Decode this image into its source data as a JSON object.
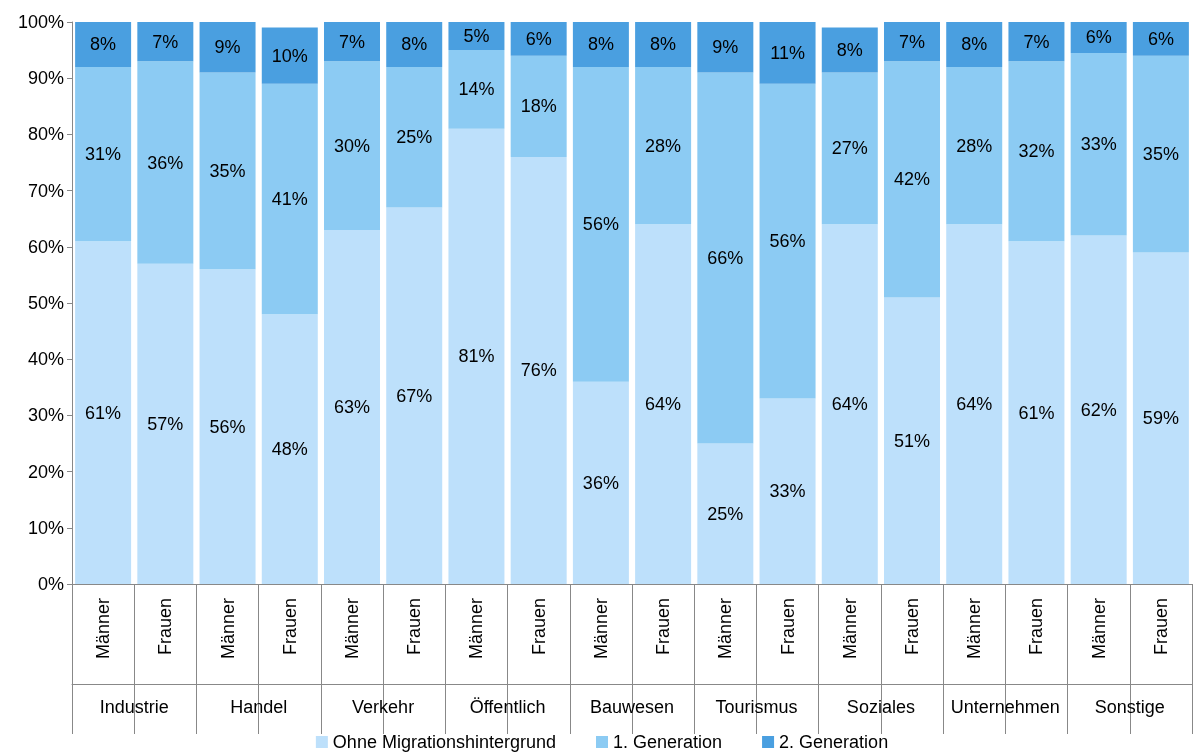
{
  "chart_data": {
    "type": "bar",
    "stacked": true,
    "categories": [
      "Männer",
      "Frauen",
      "Männer",
      "Frauen",
      "Männer",
      "Frauen",
      "Männer",
      "Frauen",
      "Männer",
      "Frauen",
      "Männer",
      "Frauen",
      "Männer",
      "Frauen",
      "Männer",
      "Frauen",
      "Männer",
      "Frauen"
    ],
    "annotations": [
      "Industrie",
      "Handel",
      "Verkehr",
      "Öffentlich",
      "Bauwesen",
      "Tourismus",
      "Soziales",
      "Unternehmen",
      "Sonstige"
    ],
    "series": [
      {
        "name": "Ohne Migrationshintergrund",
        "color": "#bde0fb",
        "values": [
          61,
          57,
          56,
          48,
          63,
          67,
          81,
          76,
          36,
          64,
          25,
          33,
          64,
          51,
          64,
          61,
          62,
          59
        ],
        "value_labels": [
          "61%",
          "57%",
          "56%",
          "48%",
          "63%",
          "67%",
          "81%",
          "76%",
          "36%",
          "64%",
          "25%",
          "33%",
          "64%",
          "51%",
          "64%",
          "61%",
          "62%",
          "59%"
        ]
      },
      {
        "name": "1. Generation",
        "color": "#8ccbf3",
        "values": [
          31,
          36,
          35,
          41,
          30,
          25,
          14,
          18,
          56,
          28,
          66,
          56,
          27,
          42,
          28,
          32,
          32.5,
          35
        ],
        "value_labels": [
          "31%",
          "36%",
          "35%",
          "41%",
          "30%",
          "25%",
          "14%",
          "18%",
          "56%",
          "28%",
          "66%",
          "56%",
          "27%",
          "42%",
          "28%",
          "32%",
          "33%",
          "35%"
        ]
      },
      {
        "name": "2. Generation",
        "color": "#4a9fe0",
        "values": [
          8,
          7,
          9,
          10,
          7,
          8,
          5,
          6,
          8,
          8,
          9,
          11,
          8,
          7,
          8,
          7,
          5.5,
          6
        ],
        "value_labels": [
          "8%",
          "7%",
          "9%",
          "10%",
          "7%",
          "8%",
          "5%",
          "6%",
          "8%",
          "8%",
          "9%",
          "11%",
          "8%",
          "7%",
          "8%",
          "7%",
          "6%",
          "6%"
        ]
      }
    ],
    "ylim": [
      0,
      100
    ],
    "yticks": [
      {
        "value": 0,
        "label": "0%"
      },
      {
        "value": 10,
        "label": "10%"
      },
      {
        "value": 20,
        "label": "20%"
      },
      {
        "value": 30,
        "label": "30%"
      },
      {
        "value": 40,
        "label": "40%"
      },
      {
        "value": 50,
        "label": "50%"
      },
      {
        "value": 60,
        "label": "60%"
      },
      {
        "value": 70,
        "label": "70%"
      },
      {
        "value": 80,
        "label": "80%"
      },
      {
        "value": 90,
        "label": "90%"
      },
      {
        "value": 100,
        "label": "100%"
      }
    ],
    "grid": false,
    "legend": "bottom"
  }
}
